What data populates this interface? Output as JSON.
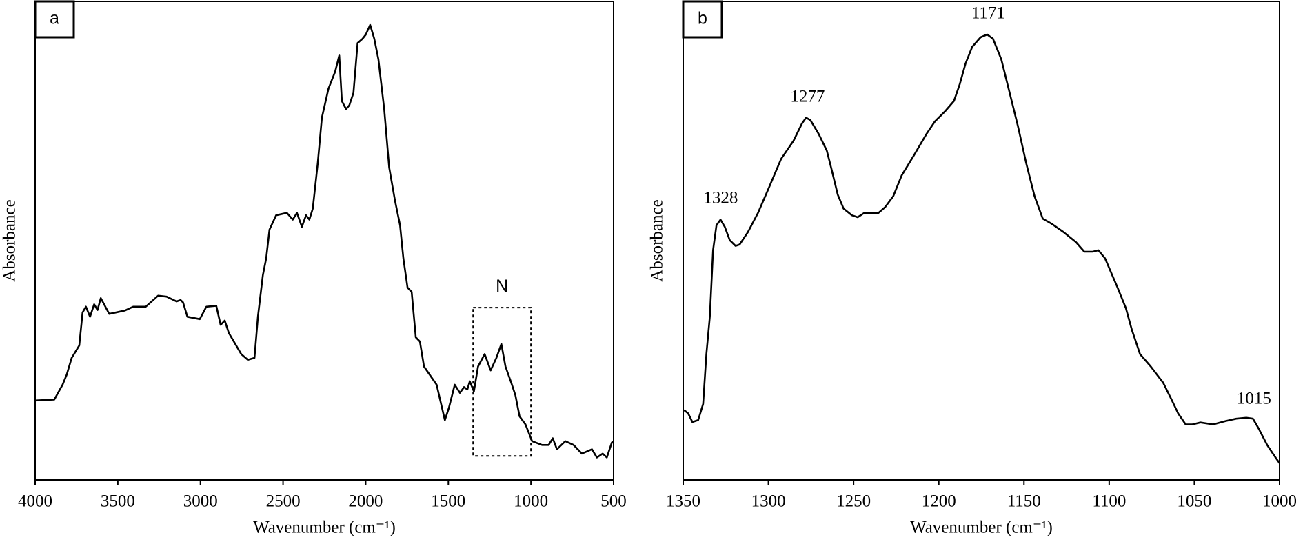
{
  "chart_data": [
    {
      "type": "line",
      "label": "a",
      "xlabel": "Wavenumber (cm⁻¹)",
      "ylabel": "Absorbance",
      "color": "#000000",
      "xlim": [
        4000,
        500
      ],
      "xticks": [
        4000,
        3500,
        3000,
        2500,
        2000,
        1500,
        1000,
        500
      ],
      "ylim": [
        0,
        100
      ],
      "x": [
        4000,
        3884,
        3834,
        3809,
        3779,
        3733,
        3713,
        3693,
        3668,
        3643,
        3623,
        3603,
        3583,
        3552,
        3457,
        3407,
        3331,
        3256,
        3205,
        3145,
        3120,
        3105,
        3079,
        3004,
        2964,
        2904,
        2878,
        2853,
        2828,
        2753,
        2713,
        2673,
        2652,
        2622,
        2602,
        2582,
        2542,
        2477,
        2441,
        2416,
        2386,
        2361,
        2341,
        2320,
        2290,
        2265,
        2225,
        2185,
        2160,
        2144,
        2119,
        2099,
        2074,
        2049,
        2019,
        1999,
        1973,
        1948,
        1923,
        1888,
        1858,
        1823,
        1792,
        1772,
        1747,
        1722,
        1697,
        1672,
        1647,
        1571,
        1521,
        1496,
        1461,
        1430,
        1405,
        1385,
        1370,
        1345,
        1320,
        1280,
        1244,
        1209,
        1179,
        1154,
        1119,
        1094,
        1069,
        1033,
        993,
        933,
        893,
        868,
        843,
        792,
        742,
        692,
        631,
        601,
        566,
        541,
        511,
        500
      ],
      "values": [
        16.6,
        16.8,
        19.9,
        22.0,
        25.5,
        28.1,
        35.0,
        36.2,
        34.1,
        36.7,
        35.5,
        38.0,
        36.7,
        34.7,
        35.4,
        36.2,
        36.2,
        38.5,
        38.3,
        37.3,
        37.6,
        37.1,
        34.1,
        33.6,
        36.2,
        36.4,
        32.4,
        33.3,
        30.7,
        26.3,
        25.1,
        25.5,
        34.1,
        42.8,
        46.3,
        52.3,
        55.3,
        55.8,
        54.4,
        55.8,
        52.9,
        55.3,
        54.4,
        56.7,
        66.2,
        75.7,
        81.8,
        85.3,
        88.7,
        79.2,
        77.5,
        78.3,
        80.9,
        91.3,
        92.2,
        93.1,
        95.1,
        92.2,
        87.9,
        77.5,
        65.3,
        58.4,
        53.2,
        46.3,
        40.2,
        39.3,
        29.8,
        28.9,
        23.7,
        19.9,
        12.5,
        15.1,
        19.9,
        18.2,
        19.4,
        18.9,
        20.6,
        18.5,
        23.7,
        26.3,
        22.9,
        25.5,
        28.4,
        23.7,
        20.3,
        17.7,
        13.3,
        11.6,
        8.1,
        7.3,
        7.3,
        8.7,
        6.4,
        8.1,
        7.3,
        5.5,
        6.4,
        4.7,
        5.5,
        4.7,
        7.8,
        8.1
      ],
      "box": {
        "label": "N",
        "x": [
          1350,
          1000
        ],
        "y": [
          5,
          36
        ]
      }
    },
    {
      "type": "line",
      "label": "b",
      "xlabel": "Wavenumber (cm⁻¹)",
      "ylabel": "Absorbance",
      "color": "#000000",
      "xlim": [
        1350,
        1000
      ],
      "xticks": [
        1350,
        1300,
        1250,
        1200,
        1150,
        1100,
        1050,
        1000
      ],
      "ylim": [
        0,
        100
      ],
      "x": [
        1349.5,
        1347.1,
        1344.6,
        1341.2,
        1338.3,
        1336.4,
        1334.4,
        1332.5,
        1330.5,
        1328.1,
        1325.6,
        1322.7,
        1319.3,
        1316.9,
        1312.0,
        1306.1,
        1299.8,
        1292.5,
        1285.2,
        1280.3,
        1277.9,
        1275.4,
        1270.5,
        1265.7,
        1263.2,
        1259.3,
        1255.9,
        1251.0,
        1247.6,
        1243.7,
        1238.9,
        1235.4,
        1231.5,
        1226.7,
        1221.8,
        1214.5,
        1207.2,
        1202.3,
        1196.4,
        1191.1,
        1187.7,
        1184.3,
        1180.4,
        1175.5,
        1171.6,
        1168.2,
        1163.3,
        1158.4,
        1153.6,
        1148.7,
        1143.8,
        1139.0,
        1134.1,
        1126.8,
        1119.5,
        1114.6,
        1109.7,
        1106.3,
        1102.4,
        1095.1,
        1090.2,
        1086.8,
        1081.9,
        1075.6,
        1068.3,
        1063.4,
        1059.5,
        1055.1,
        1051.2,
        1046.4,
        1039.0,
        1031.7,
        1025.4,
        1019.5,
        1015.6,
        1012.2,
        1007.3,
        1002.4,
        1000
      ],
      "values": [
        14.6,
        13.9,
        12.1,
        12.5,
        15.9,
        26.3,
        34.1,
        48.0,
        53.2,
        54.4,
        52.9,
        50.1,
        48.9,
        49.2,
        51.8,
        55.8,
        61.0,
        67.1,
        70.9,
        74.5,
        75.7,
        75.2,
        72.3,
        68.8,
        65.3,
        59.6,
        56.7,
        55.3,
        54.9,
        55.8,
        55.8,
        55.8,
        57.0,
        59.3,
        63.6,
        67.9,
        72.3,
        74.9,
        77.0,
        79.2,
        82.7,
        87.0,
        90.5,
        92.5,
        93.1,
        92.2,
        87.9,
        80.9,
        74.0,
        66.2,
        59.3,
        54.6,
        53.6,
        51.8,
        49.7,
        47.7,
        47.7,
        48.0,
        46.3,
        40.2,
        35.9,
        31.5,
        26.3,
        23.7,
        20.3,
        16.8,
        13.9,
        11.6,
        11.6,
        12.0,
        11.6,
        12.3,
        12.8,
        13.0,
        12.8,
        10.7,
        7.3,
        4.7,
        3.5
      ],
      "annotations": [
        1328,
        1277,
        1171,
        1015
      ]
    }
  ]
}
